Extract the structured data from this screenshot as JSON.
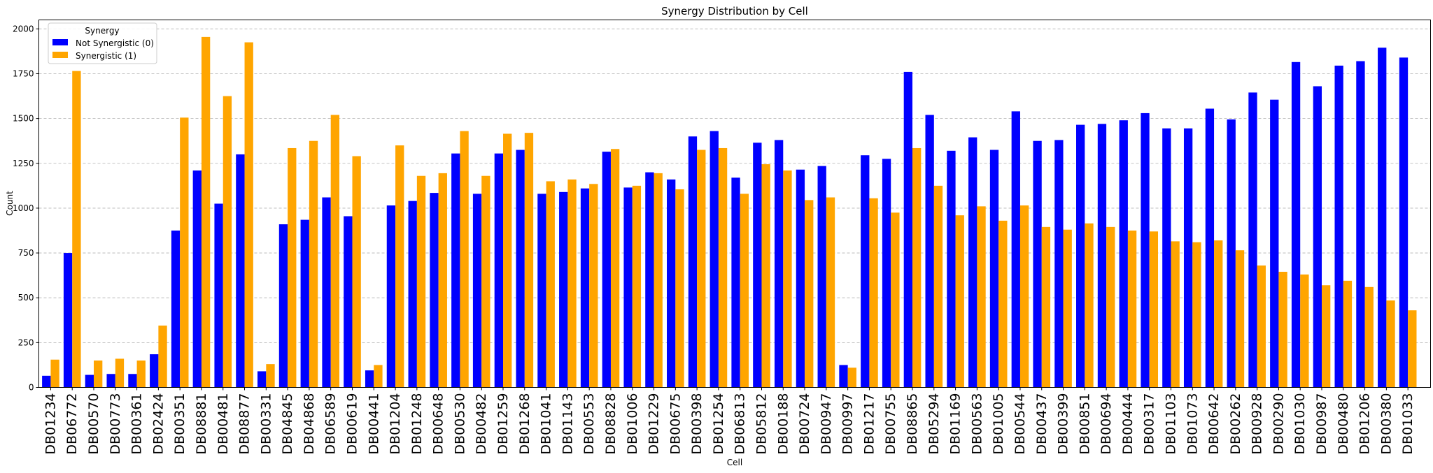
{
  "chart_data": {
    "type": "bar",
    "title": "Synergy Distribution by Cell",
    "xlabel": "Cell",
    "ylabel": "Count",
    "ylim": [
      0,
      2050
    ],
    "yticks": [
      0,
      250,
      500,
      750,
      1000,
      1250,
      1500,
      1750,
      2000
    ],
    "grid": "y-dashed",
    "legend": {
      "title": "Synergy",
      "placement": "top-left"
    },
    "categories": [
      "DB01234",
      "DB06772",
      "DB00570",
      "DB00773",
      "DB00361",
      "DB02424",
      "DB00351",
      "DB08881",
      "DB00481",
      "DB08877",
      "DB00331",
      "DB04845",
      "DB04868",
      "DB06589",
      "DB00619",
      "DB00441",
      "DB01204",
      "DB01248",
      "DB00648",
      "DB00530",
      "DB00482",
      "DB01259",
      "DB01268",
      "DB01041",
      "DB01143",
      "DB00553",
      "DB08828",
      "DB01006",
      "DB01229",
      "DB00675",
      "DB00398",
      "DB01254",
      "DB06813",
      "DB05812",
      "DB00188",
      "DB00724",
      "DB00947",
      "DB00997",
      "DB01217",
      "DB00755",
      "DB08865",
      "DB05294",
      "DB01169",
      "DB00563",
      "DB01005",
      "DB00544",
      "DB00437",
      "DB00399",
      "DB00851",
      "DB00694",
      "DB00444",
      "DB00317",
      "DB01103",
      "DB01073",
      "DB00642",
      "DB00262",
      "DB00928",
      "DB00290",
      "DB01030",
      "DB00987",
      "DB00480",
      "DB01206",
      "DB00380",
      "DB01033"
    ],
    "series": [
      {
        "name": "Not Synergistic (0)",
        "color": "#0000ff",
        "values": [
          65,
          750,
          70,
          75,
          75,
          185,
          875,
          1210,
          1025,
          1300,
          90,
          910,
          935,
          1060,
          955,
          95,
          1015,
          1040,
          1085,
          1305,
          1080,
          1305,
          1325,
          1080,
          1090,
          1110,
          1315,
          1115,
          1200,
          1160,
          1400,
          1430,
          1170,
          1365,
          1380,
          1215,
          1235,
          125,
          1295,
          1275,
          1760,
          1520,
          1320,
          1395,
          1325,
          1540,
          1375,
          1380,
          1465,
          1470,
          1490,
          1530,
          1445,
          1445,
          1555,
          1495,
          1645,
          1605,
          1815,
          1680,
          1795,
          1820,
          1895,
          1840
        ]
      },
      {
        "name": "Synergistic (1)",
        "color": "#ffa500",
        "values": [
          155,
          1765,
          150,
          160,
          150,
          345,
          1505,
          1955,
          1625,
          1925,
          130,
          1335,
          1375,
          1520,
          1290,
          125,
          1350,
          1180,
          1195,
          1430,
          1180,
          1415,
          1420,
          1150,
          1160,
          1135,
          1330,
          1125,
          1195,
          1105,
          1325,
          1335,
          1080,
          1245,
          1210,
          1045,
          1060,
          110,
          1055,
          975,
          1335,
          1125,
          960,
          1010,
          930,
          1015,
          895,
          880,
          915,
          895,
          875,
          870,
          815,
          810,
          820,
          765,
          680,
          645,
          630,
          570,
          595,
          560,
          485,
          430
        ]
      }
    ]
  }
}
